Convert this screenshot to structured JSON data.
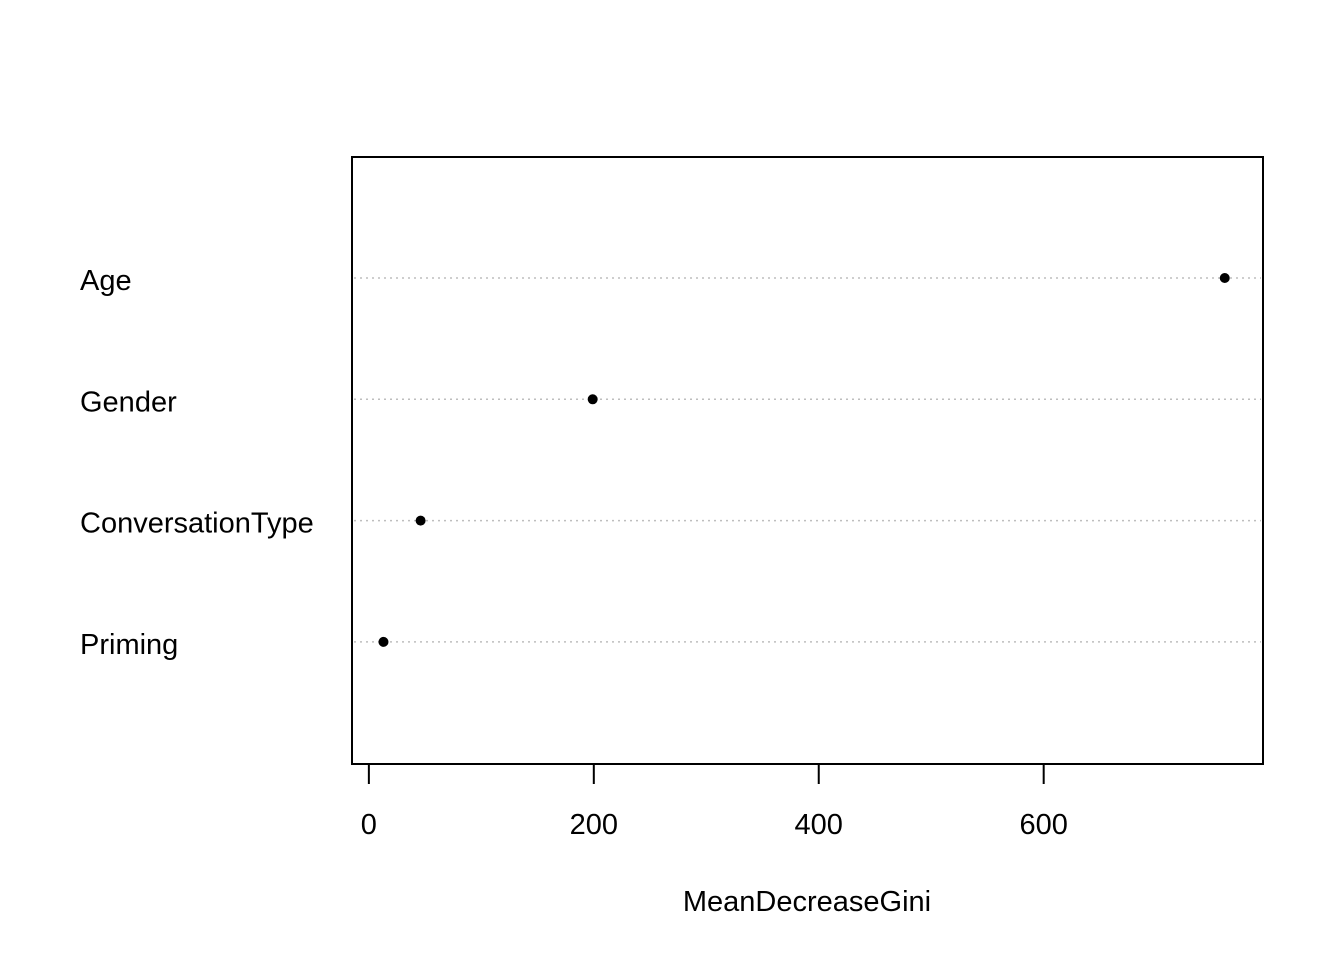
{
  "chart_data": {
    "type": "scatter",
    "subtype": "dotchart",
    "title": "",
    "xlabel": "MeanDecreaseGini",
    "ylabel": "",
    "categories": [
      "Age",
      "Gender",
      "ConversationType",
      "Priming"
    ],
    "values": [
      761,
      199,
      46,
      13
    ],
    "xlim": [
      -15,
      795
    ],
    "xticks": [
      0,
      200,
      400,
      600
    ],
    "xtick_labels": [
      "0",
      "200",
      "400",
      "600"
    ],
    "grid": "dotted horizontal guide lines per category",
    "legend": "none",
    "colors": {
      "point": "#000000",
      "guide": "#bebebe",
      "frame": "#000000"
    }
  }
}
